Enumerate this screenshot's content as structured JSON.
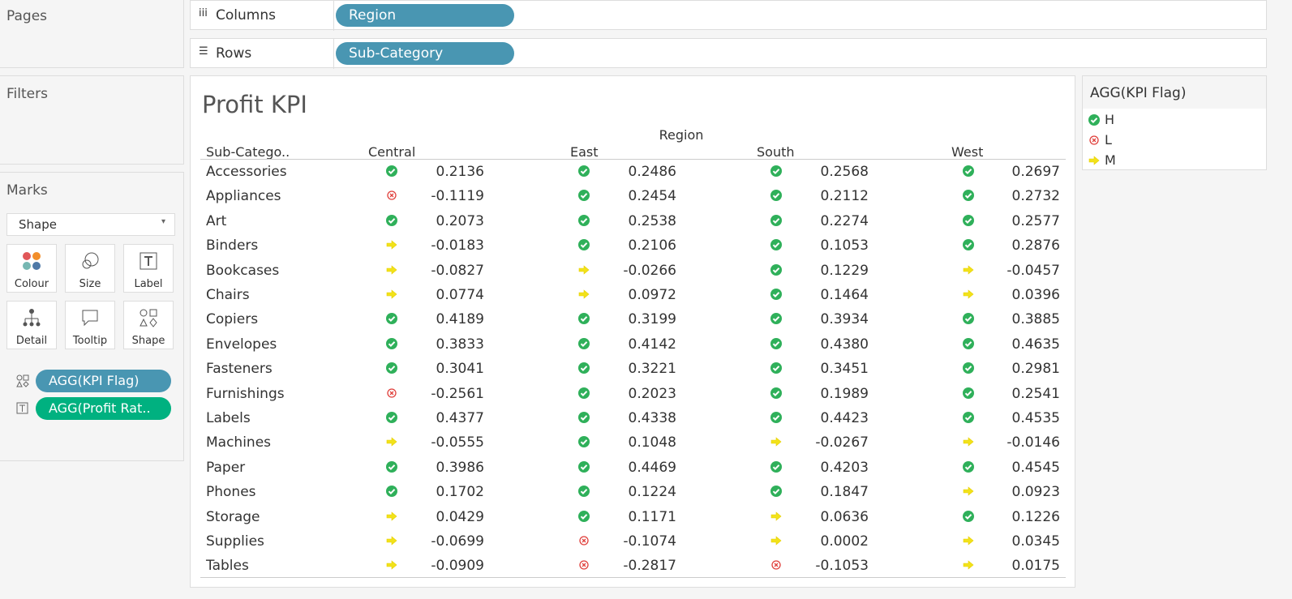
{
  "shelves": {
    "pages": "Pages",
    "columns": {
      "label": "Columns",
      "pill": "Region"
    },
    "rows": {
      "label": "Rows",
      "pill": "Sub-Category"
    }
  },
  "filters": "Filters",
  "marks": {
    "title": "Marks",
    "type": "Shape",
    "buttons": [
      "Colour",
      "Size",
      "Label",
      "Detail",
      "Tooltip",
      "Shape"
    ],
    "pills": [
      "AGG(KPI Flag)",
      "AGG(Profit Rat.."
    ]
  },
  "view": {
    "title": "Profit KPI",
    "column_header": "Region",
    "row_header": "Sub-Catego..",
    "regions": [
      "Central",
      "East",
      "South",
      "West"
    ],
    "rows": [
      {
        "name": "Accessories",
        "cells": [
          {
            "flag": "H",
            "value": "0.2136"
          },
          {
            "flag": "H",
            "value": "0.2486"
          },
          {
            "flag": "H",
            "value": "0.2568"
          },
          {
            "flag": "H",
            "value": "0.2697"
          }
        ]
      },
      {
        "name": "Appliances",
        "cells": [
          {
            "flag": "L",
            "value": "-0.1119"
          },
          {
            "flag": "H",
            "value": "0.2454"
          },
          {
            "flag": "H",
            "value": "0.2112"
          },
          {
            "flag": "H",
            "value": "0.2732"
          }
        ]
      },
      {
        "name": "Art",
        "cells": [
          {
            "flag": "H",
            "value": "0.2073"
          },
          {
            "flag": "H",
            "value": "0.2538"
          },
          {
            "flag": "H",
            "value": "0.2274"
          },
          {
            "flag": "H",
            "value": "0.2577"
          }
        ]
      },
      {
        "name": "Binders",
        "cells": [
          {
            "flag": "M",
            "value": "-0.0183"
          },
          {
            "flag": "H",
            "value": "0.2106"
          },
          {
            "flag": "H",
            "value": "0.1053"
          },
          {
            "flag": "H",
            "value": "0.2876"
          }
        ]
      },
      {
        "name": "Bookcases",
        "cells": [
          {
            "flag": "M",
            "value": "-0.0827"
          },
          {
            "flag": "M",
            "value": "-0.0266"
          },
          {
            "flag": "H",
            "value": "0.1229"
          },
          {
            "flag": "M",
            "value": "-0.0457"
          }
        ]
      },
      {
        "name": "Chairs",
        "cells": [
          {
            "flag": "M",
            "value": "0.0774"
          },
          {
            "flag": "M",
            "value": "0.0972"
          },
          {
            "flag": "H",
            "value": "0.1464"
          },
          {
            "flag": "M",
            "value": "0.0396"
          }
        ]
      },
      {
        "name": "Copiers",
        "cells": [
          {
            "flag": "H",
            "value": "0.4189"
          },
          {
            "flag": "H",
            "value": "0.3199"
          },
          {
            "flag": "H",
            "value": "0.3934"
          },
          {
            "flag": "H",
            "value": "0.3885"
          }
        ]
      },
      {
        "name": "Envelopes",
        "cells": [
          {
            "flag": "H",
            "value": "0.3833"
          },
          {
            "flag": "H",
            "value": "0.4142"
          },
          {
            "flag": "H",
            "value": "0.4380"
          },
          {
            "flag": "H",
            "value": "0.4635"
          }
        ]
      },
      {
        "name": "Fasteners",
        "cells": [
          {
            "flag": "H",
            "value": "0.3041"
          },
          {
            "flag": "H",
            "value": "0.3221"
          },
          {
            "flag": "H",
            "value": "0.3451"
          },
          {
            "flag": "H",
            "value": "0.2981"
          }
        ]
      },
      {
        "name": "Furnishings",
        "cells": [
          {
            "flag": "L",
            "value": "-0.2561"
          },
          {
            "flag": "H",
            "value": "0.2023"
          },
          {
            "flag": "H",
            "value": "0.1989"
          },
          {
            "flag": "H",
            "value": "0.2541"
          }
        ]
      },
      {
        "name": "Labels",
        "cells": [
          {
            "flag": "H",
            "value": "0.4377"
          },
          {
            "flag": "H",
            "value": "0.4338"
          },
          {
            "flag": "H",
            "value": "0.4423"
          },
          {
            "flag": "H",
            "value": "0.4535"
          }
        ]
      },
      {
        "name": "Machines",
        "cells": [
          {
            "flag": "M",
            "value": "-0.0555"
          },
          {
            "flag": "H",
            "value": "0.1048"
          },
          {
            "flag": "M",
            "value": "-0.0267"
          },
          {
            "flag": "M",
            "value": "-0.0146"
          }
        ]
      },
      {
        "name": "Paper",
        "cells": [
          {
            "flag": "H",
            "value": "0.3986"
          },
          {
            "flag": "H",
            "value": "0.4469"
          },
          {
            "flag": "H",
            "value": "0.4203"
          },
          {
            "flag": "H",
            "value": "0.4545"
          }
        ]
      },
      {
        "name": "Phones",
        "cells": [
          {
            "flag": "H",
            "value": "0.1702"
          },
          {
            "flag": "H",
            "value": "0.1224"
          },
          {
            "flag": "H",
            "value": "0.1847"
          },
          {
            "flag": "M",
            "value": "0.0923"
          }
        ]
      },
      {
        "name": "Storage",
        "cells": [
          {
            "flag": "M",
            "value": "0.0429"
          },
          {
            "flag": "H",
            "value": "0.1171"
          },
          {
            "flag": "M",
            "value": "0.0636"
          },
          {
            "flag": "H",
            "value": "0.1226"
          }
        ]
      },
      {
        "name": "Supplies",
        "cells": [
          {
            "flag": "M",
            "value": "-0.0699"
          },
          {
            "flag": "L",
            "value": "-0.1074"
          },
          {
            "flag": "M",
            "value": "0.0002"
          },
          {
            "flag": "M",
            "value": "0.0345"
          }
        ]
      },
      {
        "name": "Tables",
        "cells": [
          {
            "flag": "M",
            "value": "-0.0909"
          },
          {
            "flag": "L",
            "value": "-0.2817"
          },
          {
            "flag": "L",
            "value": "-0.1053"
          },
          {
            "flag": "M",
            "value": "0.0175"
          }
        ]
      }
    ]
  },
  "legend": {
    "title": "AGG(KPI Flag)",
    "items": [
      "H",
      "L",
      "M"
    ]
  }
}
